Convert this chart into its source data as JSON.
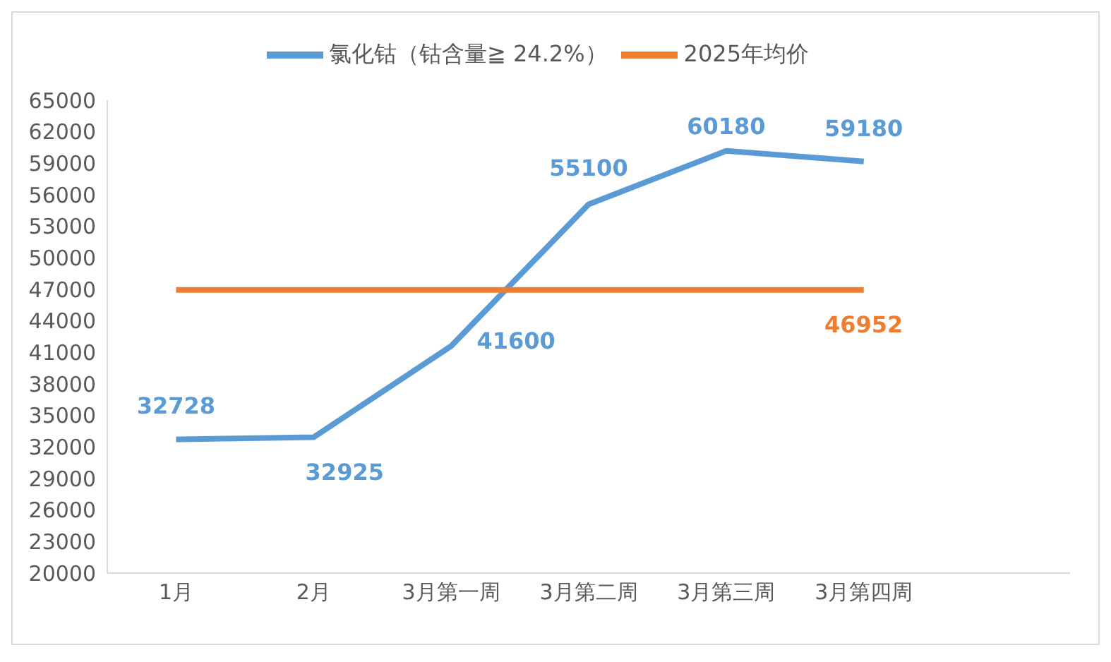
{
  "chart_data": {
    "type": "line",
    "categories": [
      "1月",
      "2月",
      "3月第一周",
      "3月第二周",
      "3月第三周",
      "3月第四周",
      null
    ],
    "series": [
      {
        "name": "氯化钴（钴含量≧ 24.2%）",
        "color": "#5b9bd5",
        "values": [
          32728,
          32925,
          41600,
          55100,
          60180,
          59180,
          null
        ],
        "value_labels": [
          "32728",
          "32925",
          "41600",
          "55100",
          "60180",
          "59180",
          null
        ]
      },
      {
        "name": "2025年均价",
        "color": "#ed7d31",
        "values": [
          46952,
          46952,
          46952,
          46952,
          46952,
          46952,
          null
        ],
        "value_labels": [
          null,
          null,
          null,
          null,
          null,
          "46952",
          null
        ]
      }
    ],
    "ylim": [
      20000,
      65000
    ],
    "yticks": [
      20000,
      23000,
      26000,
      29000,
      32000,
      35000,
      38000,
      41000,
      44000,
      47000,
      50000,
      53000,
      56000,
      59000,
      62000,
      65000
    ],
    "grid": false,
    "legend": "top",
    "marker": "none",
    "line_style": "solid"
  }
}
